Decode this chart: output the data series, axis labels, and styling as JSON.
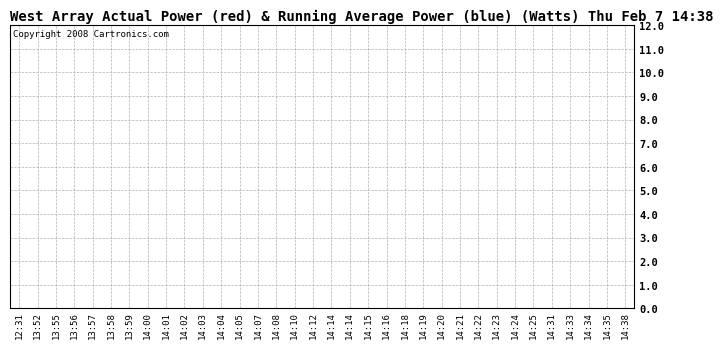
{
  "title": "West Array Actual Power (red) & Running Average Power (blue) (Watts) Thu Feb 7 14:38",
  "copyright": "Copyright 2008 Cartronics.com",
  "x_labels": [
    "12:31",
    "13:52",
    "13:55",
    "13:56",
    "13:57",
    "13:58",
    "13:59",
    "14:00",
    "14:01",
    "14:02",
    "14:03",
    "14:04",
    "14:05",
    "14:07",
    "14:08",
    "14:10",
    "14:12",
    "14:14",
    "14:14",
    "14:15",
    "14:16",
    "14:18",
    "14:19",
    "14:20",
    "14:21",
    "14:22",
    "14:23",
    "14:24",
    "14:25",
    "14:31",
    "14:33",
    "14:34",
    "14:35",
    "14:38"
  ],
  "ylim": [
    0.0,
    12.0
  ],
  "yticks": [
    0.0,
    1.0,
    2.0,
    3.0,
    4.0,
    5.0,
    6.0,
    7.0,
    8.0,
    9.0,
    10.0,
    11.0,
    12.0
  ],
  "bg_color": "#ffffff",
  "grid_color": "#aaaaaa",
  "title_fontsize": 10,
  "copyright_fontsize": 6.5,
  "tick_fontsize": 6.5,
  "ytick_fontsize": 7.5,
  "title_font": "monospace",
  "tick_font": "monospace"
}
